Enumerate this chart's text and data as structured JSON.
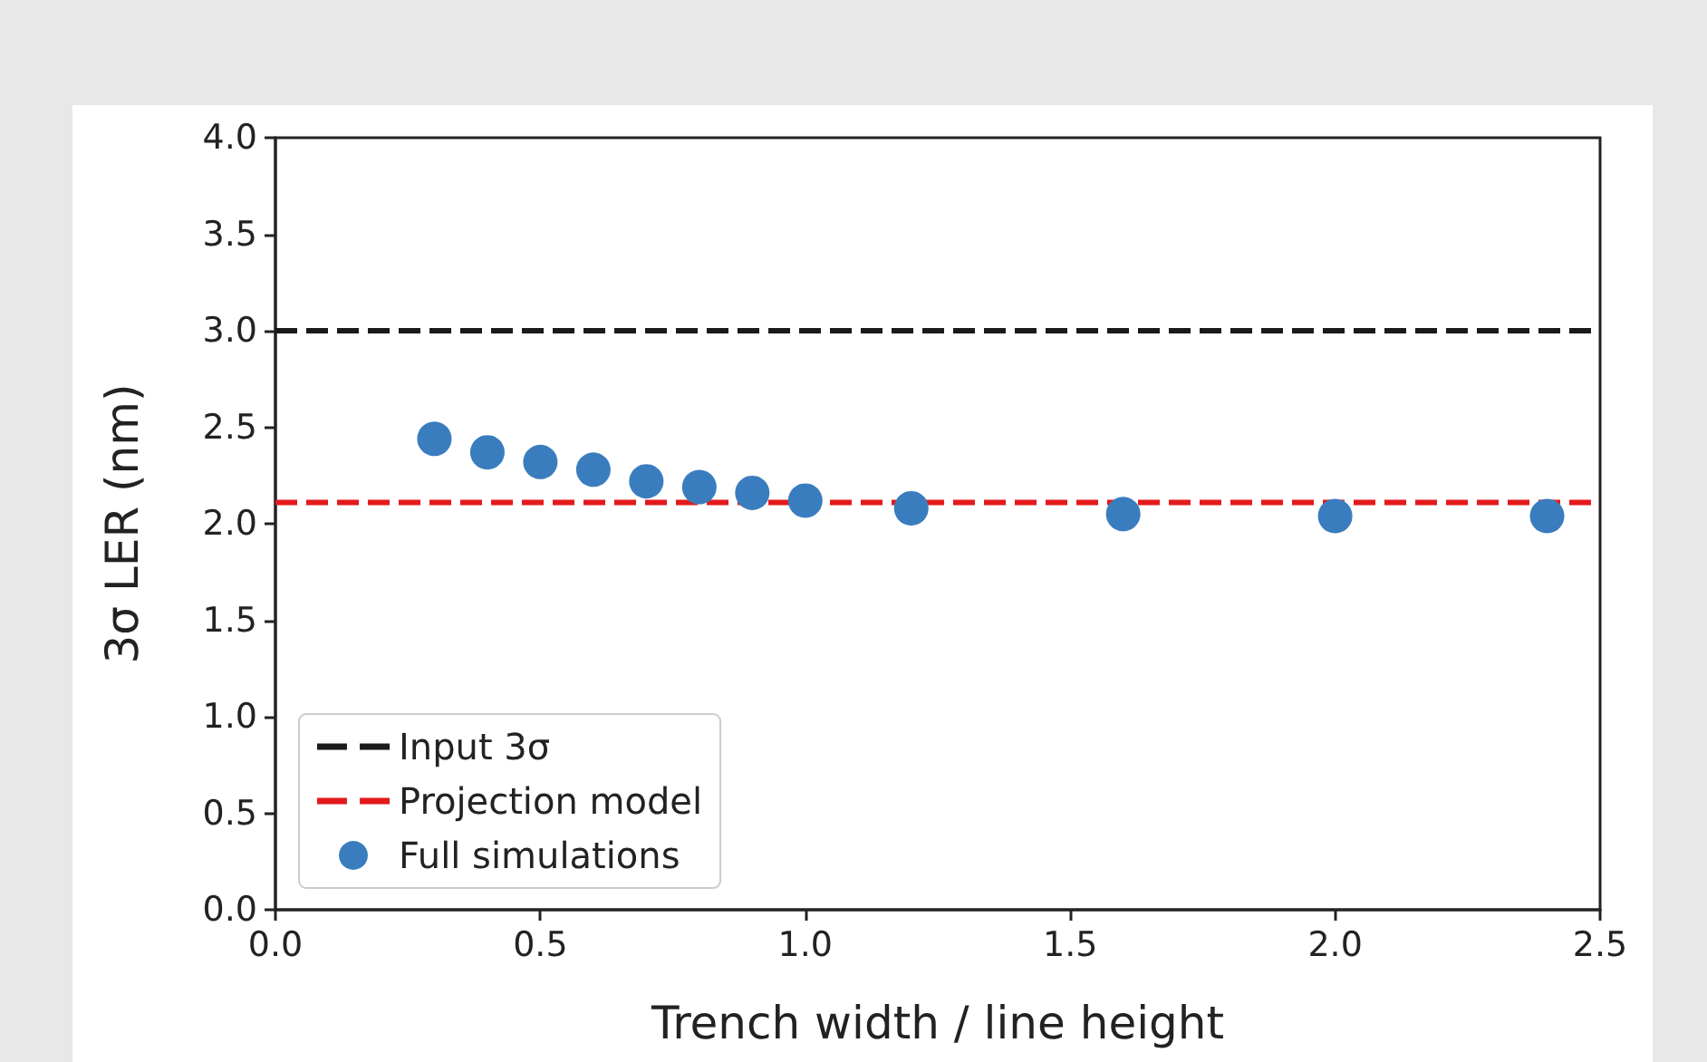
{
  "chart_data": {
    "type": "scatter",
    "xlabel": "Trench width / line height",
    "ylabel": "3σ LER (nm)",
    "xlim": [
      0,
      2.5
    ],
    "xticks": [
      {
        "value": 0,
        "label": "0.0"
      },
      0.5,
      {
        "value": 1,
        "label": "1.0"
      },
      1.5,
      {
        "value": 2,
        "label": "2.0"
      },
      2.5
    ],
    "ylim": [
      0,
      4
    ],
    "yticks": [
      {
        "value": 0,
        "label": "0.0"
      },
      0.5,
      {
        "value": 1,
        "label": "1.0"
      },
      1.5,
      {
        "value": 2,
        "label": "2.0"
      },
      2.5,
      {
        "value": 3,
        "label": "3.0"
      },
      3.5,
      {
        "value": 4,
        "label": "4.0"
      }
    ],
    "grid": false,
    "legend": "bottom left",
    "series": [
      {
        "name": "Input 3σ",
        "type": "line",
        "color": "#1a1a1a",
        "line_style": "dashed",
        "x": [
          0,
          2.5
        ],
        "values": [
          3,
          3
        ]
      },
      {
        "name": "Projection model",
        "type": "line",
        "color": "#e31a1c",
        "line_style": "dashed",
        "x": [
          0,
          2.5
        ],
        "values": [
          2.11,
          2.11
        ]
      },
      {
        "name": "Full simulations",
        "color": "#3a7dbf",
        "marker": "circle",
        "x": [
          0.3,
          0.4,
          0.5,
          0.6,
          0.7,
          0.8,
          0.9,
          1.0,
          1.2,
          1.6,
          2.0,
          2.4
        ],
        "values": [
          2.44,
          2.37,
          2.32,
          2.28,
          2.22,
          2.19,
          2.16,
          2.12,
          2.08,
          2.05,
          2.04,
          2.04
        ]
      }
    ]
  }
}
